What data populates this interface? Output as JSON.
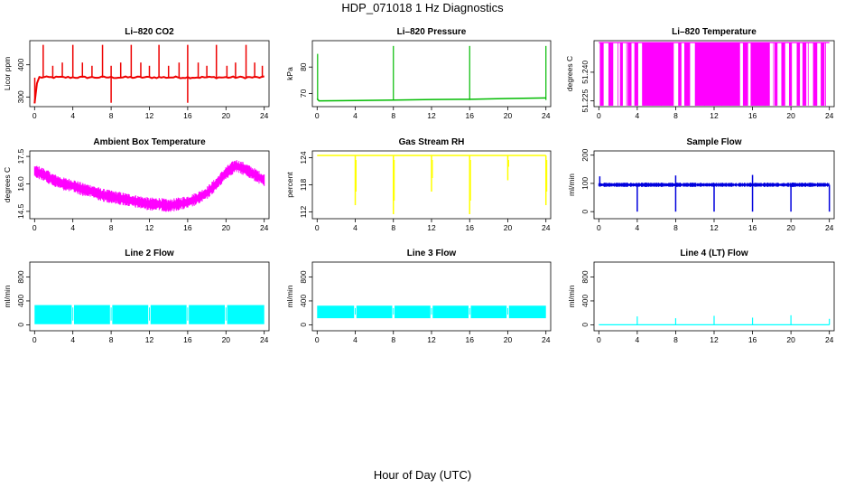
{
  "figure": {
    "title": "HDP_071018  1 Hz Diagnostics",
    "xlabel": "Hour of Day (UTC)"
  },
  "chart_data": [
    {
      "type": "line",
      "title": "Li–820 CO2",
      "ylabel": "Licor ppm",
      "color": "#ee0000",
      "xlim": [
        -0.5,
        24.5
      ],
      "ylim": [
        270,
        475
      ],
      "xticks": [
        0,
        4,
        8,
        12,
        16,
        20,
        24
      ],
      "yticks": [
        300,
        400
      ],
      "x": [
        0,
        0.3,
        1,
        2,
        3,
        4,
        5,
        6,
        7,
        8,
        9,
        10,
        11,
        12,
        13,
        14,
        15,
        16,
        17,
        18,
        19,
        20,
        21,
        22,
        23,
        24
      ],
      "values": [
        280,
        350,
        362,
        361,
        360,
        363,
        360,
        361,
        362,
        361,
        362,
        360,
        361,
        362,
        361,
        360,
        361,
        362,
        360,
        361,
        362,
        361,
        360,
        361,
        362,
        345
      ],
      "spikes_x": [
        0.9,
        1.9,
        2.9,
        4.0,
        5.0,
        6.0,
        7.1,
        8.0,
        9.0,
        10.1,
        11.1,
        12.0,
        13.0,
        14.0,
        15.1,
        16.0,
        17.1,
        18.0,
        19.0,
        20.1,
        21.0,
        22.1,
        23.0,
        23.8
      ],
      "spike_peak": 462,
      "dips_x": [
        8.0,
        16.0
      ],
      "dip_min": 282
    },
    {
      "type": "line",
      "title": "Li–820 Pressure",
      "ylabel": "kPa",
      "color": "#00bb00",
      "xlim": [
        -0.5,
        24.5
      ],
      "ylim": [
        65,
        90
      ],
      "xticks": [
        0,
        4,
        8,
        12,
        16,
        20,
        24
      ],
      "yticks": [
        70,
        80
      ],
      "x": [
        0,
        0.2,
        4,
        8,
        12,
        16,
        20,
        24
      ],
      "values": [
        68,
        67.2,
        67.3,
        67.5,
        67.7,
        67.8,
        68.1,
        68.3
      ],
      "spikes_x": [
        0.05,
        8.0,
        16.0,
        24.0
      ],
      "spike_peaks": [
        85,
        88,
        88,
        88
      ]
    },
    {
      "type": "line",
      "title": "Li–820 Temperature",
      "ylabel": "degrees C",
      "color": "#ff00ff",
      "xlim": [
        -0.5,
        24.5
      ],
      "ylim": [
        51.222,
        51.2565
      ],
      "xticks": [
        0,
        4,
        8,
        12,
        16,
        20,
        24
      ],
      "yticks": [
        51.225,
        51.24
      ],
      "ytick_labels": [
        "51.225",
        "51.240"
      ],
      "high_value": 51.2555,
      "low_value": 51.2225,
      "bands": [
        [
          0.1,
          0.5
        ],
        [
          1.0,
          1.5
        ],
        [
          2.2,
          2.5
        ],
        [
          3.0,
          3.4
        ],
        [
          3.7,
          4.1
        ],
        [
          4.5,
          7.8
        ],
        [
          8.3,
          8.6
        ],
        [
          8.9,
          9.5
        ],
        [
          10.0,
          14.7
        ],
        [
          15.0,
          15.5
        ],
        [
          15.8,
          17.8
        ],
        [
          18.3,
          18.6
        ],
        [
          19.0,
          19.4
        ],
        [
          19.8,
          20.1
        ],
        [
          20.6,
          20.9
        ],
        [
          21.2,
          21.6
        ],
        [
          22.3,
          22.7
        ],
        [
          23.1,
          23.5
        ]
      ]
    },
    {
      "type": "line",
      "title": "Ambient Box Temperature",
      "ylabel": "degrees C",
      "color": "#ff00ff",
      "xlim": [
        -0.5,
        24.5
      ],
      "ylim": [
        14.1,
        17.8
      ],
      "xticks": [
        0,
        4,
        8,
        12,
        16,
        20,
        24
      ],
      "yticks": [
        14.5,
        16,
        17.5
      ],
      "ytick_labels": [
        "14.5",
        "16.0",
        "17.5"
      ],
      "x": [
        0,
        1,
        2,
        3,
        4,
        5,
        6,
        7,
        8,
        9,
        10,
        11,
        12,
        13,
        14,
        15,
        16,
        17,
        18,
        19,
        20,
        21,
        22,
        23,
        24
      ],
      "values": [
        16.7,
        16.5,
        16.2,
        16.0,
        15.9,
        15.7,
        15.6,
        15.4,
        15.3,
        15.2,
        15.1,
        15.0,
        14.9,
        14.9,
        14.8,
        14.9,
        15.0,
        15.2,
        15.5,
        16.0,
        16.6,
        17.0,
        16.8,
        16.5,
        16.2
      ],
      "band": 0.55
    },
    {
      "type": "line",
      "title": "Gas Stream RH",
      "ylabel": "percent",
      "color": "#ffff00",
      "xlim": [
        -0.5,
        24.5
      ],
      "ylim": [
        110.5,
        125.5
      ],
      "xticks": [
        0,
        4,
        8,
        12,
        16,
        20,
        24
      ],
      "yticks": [
        112,
        118,
        124
      ],
      "ytick_labels": [
        "112",
        "118",
        "124"
      ],
      "baseline": 124.5,
      "spikes_x": [
        4.0,
        8.0,
        12.0,
        16.0,
        20.0,
        24.0
      ],
      "spike_mins": [
        113.5,
        111.5,
        116.5,
        111.5,
        119,
        113.5
      ]
    },
    {
      "type": "line",
      "title": "Sample Flow",
      "ylabel": "ml/min",
      "color": "#0000dd",
      "xlim": [
        -0.5,
        24.5
      ],
      "ylim": [
        -25,
        215
      ],
      "xticks": [
        0,
        4,
        8,
        12,
        16,
        20,
        24
      ],
      "yticks": [
        0,
        100,
        200
      ],
      "ytick_labels": [
        "0",
        "100",
        "200"
      ],
      "baseline": 95,
      "band": 12,
      "dips_x": [
        4.0,
        8.0,
        12.0,
        16.0,
        20.0,
        24.0
      ],
      "dip_min": 0,
      "spikes_x": [
        0.1,
        8.0,
        16.0
      ],
      "spike_peaks": [
        125,
        128,
        130
      ]
    },
    {
      "type": "line",
      "title": "Line 2 Flow",
      "ylabel": "ml/min",
      "color": "#00ffff",
      "xlim": [
        -0.5,
        24.5
      ],
      "ylim": [
        -100,
        1050
      ],
      "xticks": [
        0,
        4,
        8,
        12,
        16,
        20,
        24
      ],
      "yticks": [
        0,
        400,
        800
      ],
      "ytick_labels": [
        "0",
        "400",
        "800"
      ],
      "low_value": 10,
      "high_value": 330,
      "gaps_x": [
        4.0,
        8.0,
        12.0,
        16.0,
        20.0
      ],
      "end_x": 24.0
    },
    {
      "type": "line",
      "title": "Line 3 Flow",
      "ylabel": "ml/min",
      "color": "#00ffff",
      "xlim": [
        -0.5,
        24.5
      ],
      "ylim": [
        -100,
        1050
      ],
      "xticks": [
        0,
        4,
        8,
        12,
        16,
        20,
        24
      ],
      "yticks": [
        0,
        400,
        800
      ],
      "ytick_labels": [
        "0",
        "400",
        "800"
      ],
      "low_value": 110,
      "high_value": 320,
      "gaps_x": [
        4.0,
        8.0,
        12.0,
        16.0,
        20.0
      ],
      "end_x": 24.0
    },
    {
      "type": "line",
      "title": "Line 4 (LT) Flow",
      "ylabel": "ml/min",
      "color": "#00ffff",
      "xlim": [
        -0.5,
        24.5
      ],
      "ylim": [
        -100,
        1050
      ],
      "xticks": [
        0,
        4,
        8,
        12,
        16,
        20,
        24
      ],
      "yticks": [
        0,
        400,
        800
      ],
      "ytick_labels": [
        "0",
        "400",
        "800"
      ],
      "baseline": 0,
      "spikes_x": [
        4.0,
        8.0,
        12.0,
        16.0,
        20.0,
        24.0
      ],
      "spike_peaks": [
        140,
        110,
        150,
        120,
        160,
        100
      ]
    }
  ]
}
